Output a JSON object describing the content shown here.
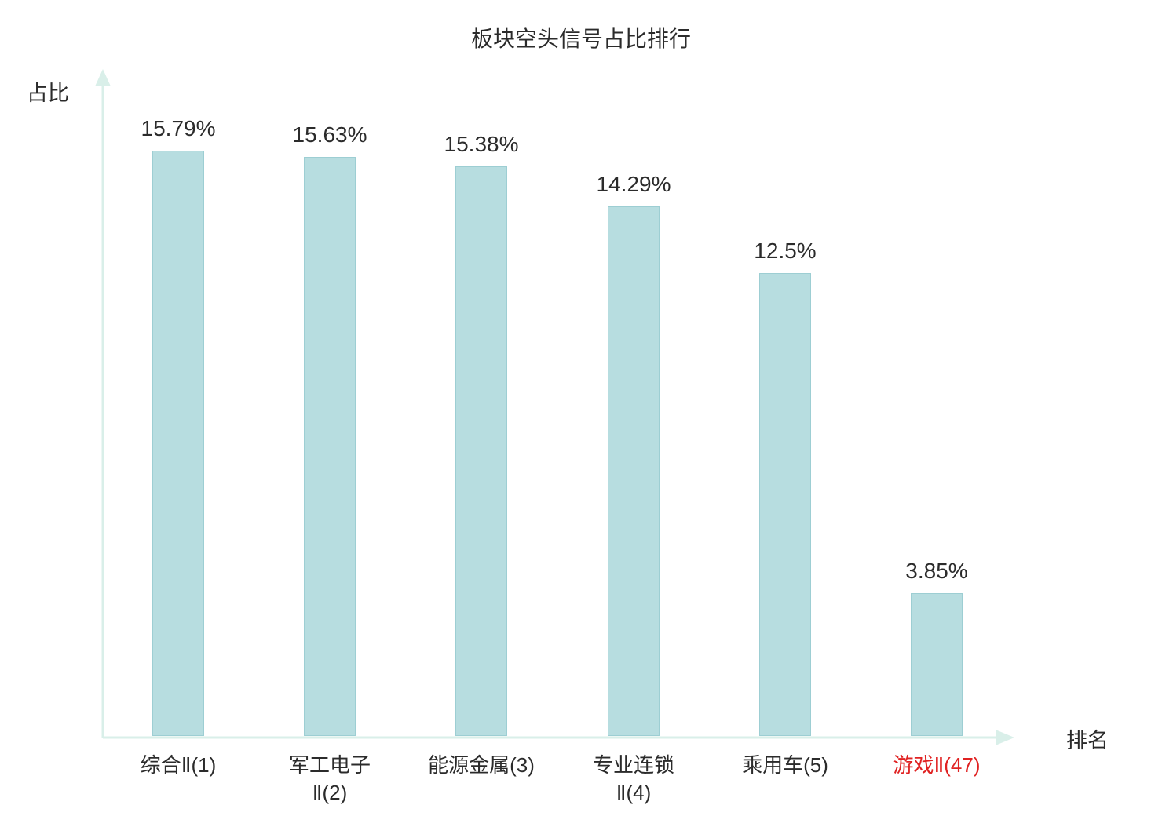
{
  "chart_data": {
    "type": "bar",
    "title": "板块空头信号占比排行",
    "xlabel": "排名",
    "ylabel": "占比",
    "categories": [
      "综合Ⅱ(1)",
      "军工电子Ⅱ(2)",
      "能源金属(3)",
      "专业连锁Ⅱ(4)",
      "乘用车(5)",
      "游戏Ⅱ(47)"
    ],
    "category_lines": [
      [
        "综合Ⅱ(1)"
      ],
      [
        "军工电子",
        "Ⅱ(2)"
      ],
      [
        "能源金属(3)"
      ],
      [
        "专业连锁",
        "Ⅱ(4)"
      ],
      [
        "乘用车(5)"
      ],
      [
        "游戏Ⅱ(47)"
      ]
    ],
    "values": [
      15.79,
      15.63,
      15.38,
      14.29,
      12.5,
      3.85
    ],
    "value_labels": [
      "15.79%",
      "15.63%",
      "15.38%",
      "14.29%",
      "12.5%",
      "3.85%"
    ],
    "highlight_index": 5,
    "ylim": [
      0,
      18
    ],
    "grid": false,
    "legend": "none",
    "colors": {
      "bar_fill": "#b7dde0",
      "bar_border": "#9dced3",
      "axis": "#d9efe9",
      "text": "#2b2b2b",
      "highlight": "#e02222",
      "background": "#ffffff"
    }
  }
}
